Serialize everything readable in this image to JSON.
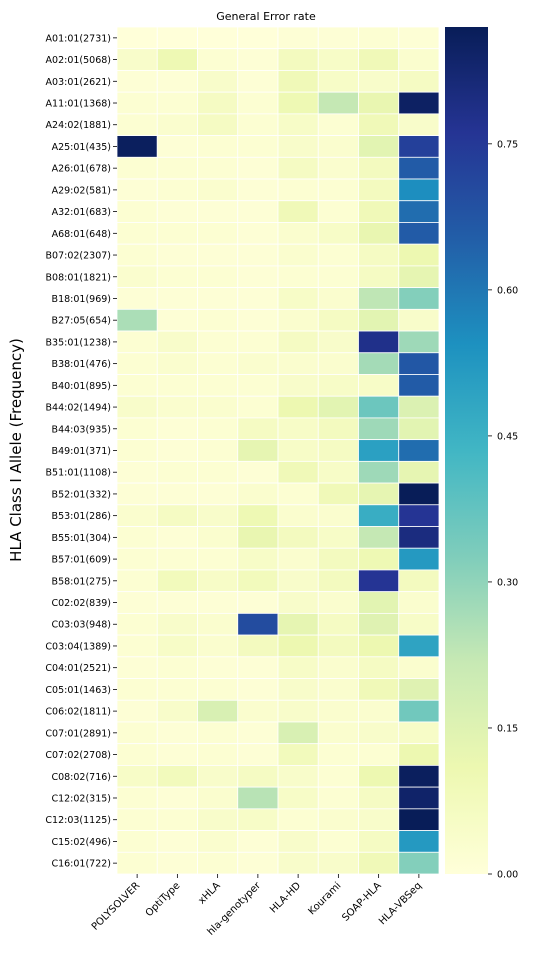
{
  "chart_data": {
    "type": "heatmap",
    "title": "General Error rate",
    "ylabel": "HLA Class I Allele (Frequency)",
    "xlabel": "",
    "colormap": "YlGnBu",
    "color_range": [
      0,
      0.87
    ],
    "colorbar_ticks": [
      "0.00",
      "0.15",
      "0.30",
      "0.45",
      "0.60",
      "0.75"
    ],
    "colorbar_tick_values": [
      0,
      0.15,
      0.3,
      0.45,
      0.6,
      0.75
    ],
    "columns": [
      "POLYSOLVER",
      "OptiType",
      "xHLA",
      "hla-genotyper",
      "HLA-HD",
      "Kourami",
      "SOAP-HLA",
      "HLA-VBSeq"
    ],
    "rows": [
      "A01:01(2731)",
      "A02:01(5068)",
      "A03:01(2621)",
      "A11:01(1368)",
      "A24:02(1881)",
      "A25:01(435)",
      "A26:01(678)",
      "A29:02(581)",
      "A32:01(683)",
      "A68:01(648)",
      "B07:02(2307)",
      "B08:01(1821)",
      "B18:01(969)",
      "B27:05(654)",
      "B35:01(1238)",
      "B38:01(476)",
      "B40:01(895)",
      "B44:02(1494)",
      "B44:03(935)",
      "B49:01(371)",
      "B51:01(1108)",
      "B52:01(332)",
      "B53:01(286)",
      "B55:01(304)",
      "B57:01(609)",
      "B58:01(275)",
      "C02:02(839)",
      "C03:03(948)",
      "C03:04(1389)",
      "C04:01(2521)",
      "C05:01(1463)",
      "C06:02(1811)",
      "C07:01(2891)",
      "C07:02(2708)",
      "C08:02(716)",
      "C12:02(315)",
      "C12:03(1125)",
      "C15:02(496)",
      "C16:01(722)"
    ],
    "values": [
      [
        0.0,
        0.0,
        0.0,
        0.0,
        0.01,
        0.01,
        0.02,
        0.01
      ],
      [
        0.04,
        0.1,
        0.02,
        0.01,
        0.07,
        0.05,
        0.09,
        0.03
      ],
      [
        0.01,
        0.01,
        0.04,
        0.01,
        0.09,
        0.05,
        0.04,
        0.06
      ],
      [
        0.02,
        0.02,
        0.06,
        0.02,
        0.1,
        0.22,
        0.12,
        0.85
      ],
      [
        0.02,
        0.03,
        0.06,
        0.02,
        0.05,
        0.02,
        0.09,
        0.04
      ],
      [
        0.86,
        0.01,
        0.02,
        0.02,
        0.04,
        0.03,
        0.14,
        0.73
      ],
      [
        0.02,
        0.02,
        0.02,
        0.01,
        0.06,
        0.03,
        0.07,
        0.66
      ],
      [
        0.01,
        0.02,
        0.03,
        0.01,
        0.02,
        0.02,
        0.07,
        0.55
      ],
      [
        0.02,
        0.01,
        0.01,
        0.01,
        0.09,
        0.02,
        0.09,
        0.62
      ],
      [
        0.02,
        0.02,
        0.02,
        0.01,
        0.03,
        0.05,
        0.12,
        0.66
      ],
      [
        0.02,
        0.01,
        0.01,
        0.01,
        0.03,
        0.02,
        0.06,
        0.11
      ],
      [
        0.03,
        0.02,
        0.02,
        0.01,
        0.02,
        0.02,
        0.06,
        0.13
      ],
      [
        0.01,
        0.01,
        0.01,
        0.01,
        0.05,
        0.03,
        0.23,
        0.32
      ],
      [
        0.26,
        0.01,
        0.02,
        0.01,
        0.03,
        0.06,
        0.14,
        0.04
      ],
      [
        0.02,
        0.04,
        0.02,
        0.02,
        0.06,
        0.04,
        0.78,
        0.28
      ],
      [
        0.02,
        0.03,
        0.02,
        0.03,
        0.03,
        0.03,
        0.27,
        0.67
      ],
      [
        0.02,
        0.02,
        0.02,
        0.02,
        0.04,
        0.05,
        0.05,
        0.66
      ],
      [
        0.04,
        0.03,
        0.03,
        0.02,
        0.11,
        0.14,
        0.36,
        0.16
      ],
      [
        0.02,
        0.01,
        0.02,
        0.06,
        0.05,
        0.07,
        0.28,
        0.14
      ],
      [
        0.02,
        0.01,
        0.02,
        0.13,
        0.05,
        0.06,
        0.5,
        0.62
      ],
      [
        0.01,
        0.02,
        0.02,
        0.01,
        0.09,
        0.05,
        0.28,
        0.13
      ],
      [
        0.01,
        0.01,
        0.01,
        0.03,
        0.02,
        0.09,
        0.13,
        0.87
      ],
      [
        0.03,
        0.06,
        0.04,
        0.1,
        0.03,
        0.03,
        0.46,
        0.76
      ],
      [
        0.02,
        0.01,
        0.03,
        0.12,
        0.07,
        0.05,
        0.22,
        0.8
      ],
      [
        0.02,
        0.02,
        0.02,
        0.05,
        0.03,
        0.07,
        0.1,
        0.52
      ],
      [
        0.02,
        0.08,
        0.05,
        0.08,
        0.04,
        0.07,
        0.76,
        0.07
      ],
      [
        0.01,
        0.01,
        0.01,
        0.01,
        0.04,
        0.03,
        0.14,
        0.03
      ],
      [
        0.02,
        0.04,
        0.03,
        0.7,
        0.13,
        0.06,
        0.15,
        0.05
      ],
      [
        0.02,
        0.05,
        0.03,
        0.07,
        0.11,
        0.07,
        0.11,
        0.49
      ],
      [
        0.01,
        0.02,
        0.01,
        0.01,
        0.05,
        0.03,
        0.06,
        0.03
      ],
      [
        0.02,
        0.02,
        0.02,
        0.01,
        0.04,
        0.03,
        0.09,
        0.15
      ],
      [
        0.01,
        0.04,
        0.17,
        0.03,
        0.04,
        0.03,
        0.03,
        0.35
      ],
      [
        0.02,
        0.01,
        0.02,
        0.01,
        0.17,
        0.03,
        0.04,
        0.05
      ],
      [
        0.02,
        0.01,
        0.02,
        0.01,
        0.08,
        0.02,
        0.02,
        0.11
      ],
      [
        0.05,
        0.08,
        0.04,
        0.06,
        0.04,
        0.02,
        0.11,
        0.86
      ],
      [
        0.02,
        0.01,
        0.03,
        0.24,
        0.05,
        0.02,
        0.06,
        0.84
      ],
      [
        0.02,
        0.02,
        0.04,
        0.05,
        0.02,
        0.03,
        0.04,
        0.87
      ],
      [
        0.02,
        0.01,
        0.03,
        0.01,
        0.04,
        0.02,
        0.06,
        0.52
      ],
      [
        0.02,
        0.01,
        0.02,
        0.01,
        0.04,
        0.04,
        0.09,
        0.32
      ]
    ],
    "grid": false,
    "legend": "colorbar-right"
  }
}
